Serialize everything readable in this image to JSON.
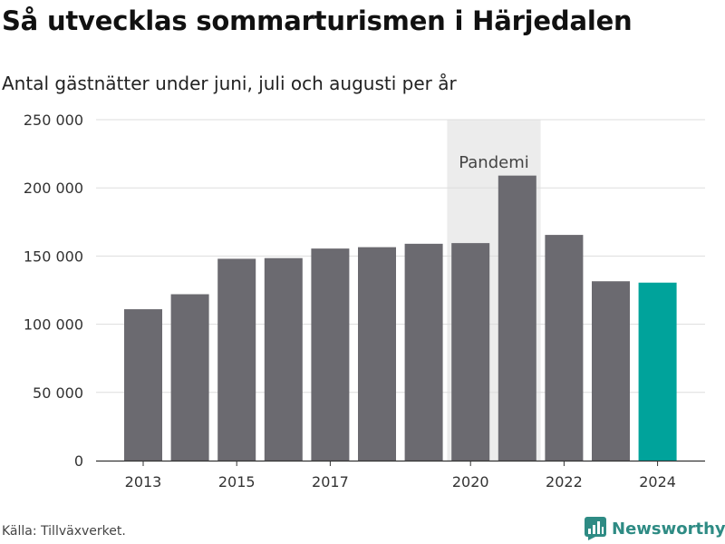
{
  "title": "Så utvecklas sommarturismen i Härjedalen",
  "subtitle": "Antal gästnätter under juni, juli och augusti per år",
  "source": "Källa: Tillväxverket.",
  "brand": {
    "name": "Newsworthy",
    "icon": "newsworthy-logo-icon",
    "color": "#2e8b84"
  },
  "chart_data": {
    "type": "bar",
    "categories": [
      "2013",
      "2014",
      "2015",
      "2016",
      "2017",
      "2018",
      "2019",
      "2020",
      "2021",
      "2022",
      "2023",
      "2024"
    ],
    "values": [
      111000,
      122000,
      148000,
      148500,
      155500,
      156500,
      159000,
      159500,
      209000,
      165500,
      131500,
      130500
    ],
    "ylim": [
      0,
      250000
    ],
    "yticks": [
      0,
      50000,
      100000,
      150000,
      200000,
      250000
    ],
    "ytick_labels": [
      "0",
      "50 000",
      "100 000",
      "150 000",
      "200 000",
      "250 000"
    ],
    "xtick_labels": [
      "2013",
      "2015",
      "2017",
      "2020",
      "2022",
      "2024"
    ],
    "highlight": {
      "category": "2024",
      "color": "#00a39b"
    },
    "bar_color": "#6b6a70",
    "annotation": {
      "label": "Pandemi",
      "from": "2020",
      "to": "2021",
      "color": "#ececec"
    },
    "grid": true,
    "xlabel": "",
    "ylabel": ""
  }
}
